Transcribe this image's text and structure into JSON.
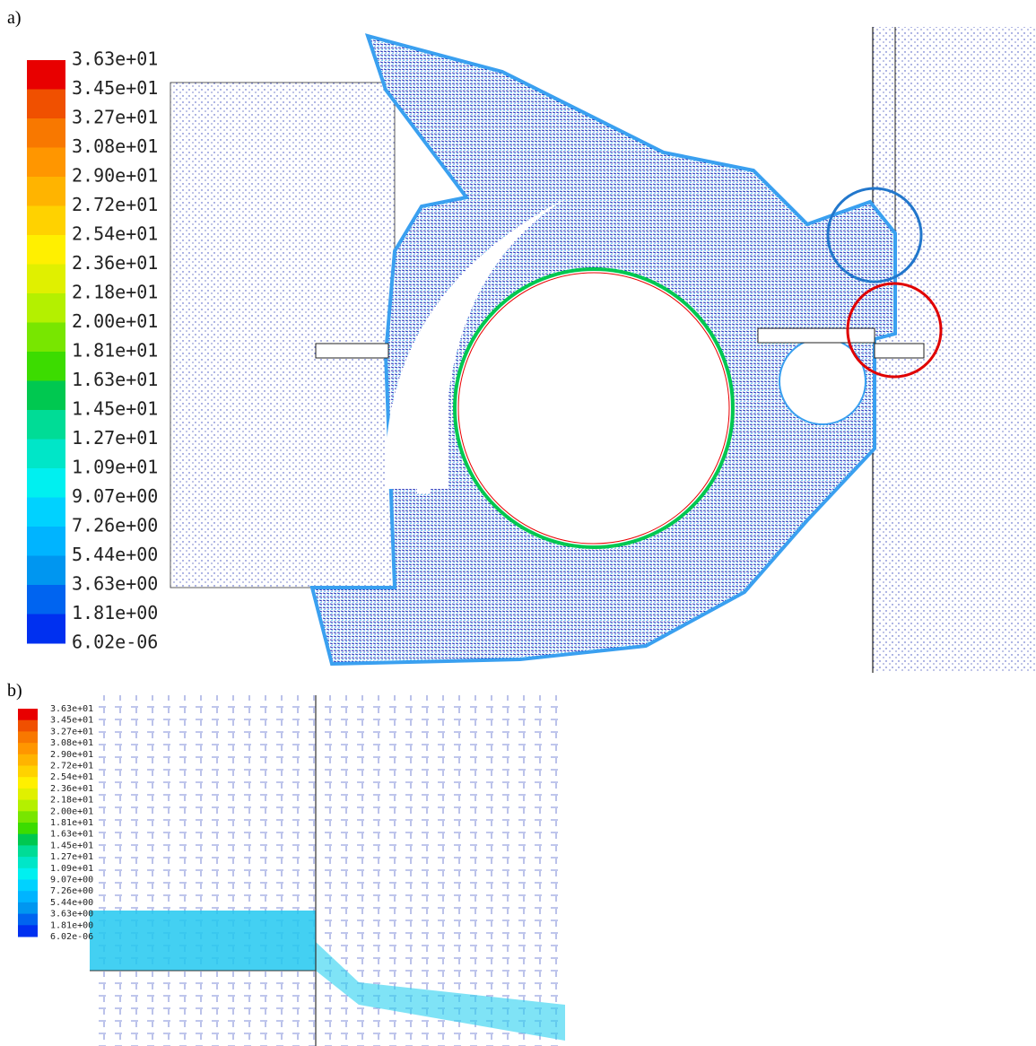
{
  "panels": [
    {
      "label": "a)",
      "colorbar": {
        "labels": [
          "3.63e+01",
          "3.45e+01",
          "3.27e+01",
          "3.08e+01",
          "2.90e+01",
          "2.72e+01",
          "2.54e+01",
          "2.36e+01",
          "2.18e+01",
          "2.00e+01",
          "1.81e+01",
          "1.63e+01",
          "1.45e+01",
          "1.27e+01",
          "1.09e+01",
          "9.07e+00",
          "7.26e+00",
          "5.44e+00",
          "3.63e+00",
          "1.81e+00",
          "6.02e-06"
        ]
      }
    },
    {
      "label": "b)",
      "colorbar": {
        "labels": [
          "3.63e+01",
          "3.45e+01",
          "3.27e+01",
          "3.08e+01",
          "2.90e+01",
          "2.72e+01",
          "2.54e+01",
          "2.36e+01",
          "2.18e+01",
          "2.00e+01",
          "1.81e+01",
          "1.63e+01",
          "1.45e+01",
          "1.27e+01",
          "1.09e+01",
          "9.07e+00",
          "7.26e+00",
          "5.44e+00",
          "3.63e+00",
          "1.81e+00",
          "6.02e-06"
        ]
      }
    }
  ],
  "colorbar_colors": [
    "#e80000",
    "#f05000",
    "#f87800",
    "#ff9600",
    "#ffb400",
    "#ffd200",
    "#fff000",
    "#e0f000",
    "#b4f000",
    "#78e600",
    "#3cdc00",
    "#00c850",
    "#00dc96",
    "#00e6c8",
    "#00f0f0",
    "#00d2ff",
    "#00b4ff",
    "#0096f0",
    "#0064f0",
    "#0030f0"
  ]
}
